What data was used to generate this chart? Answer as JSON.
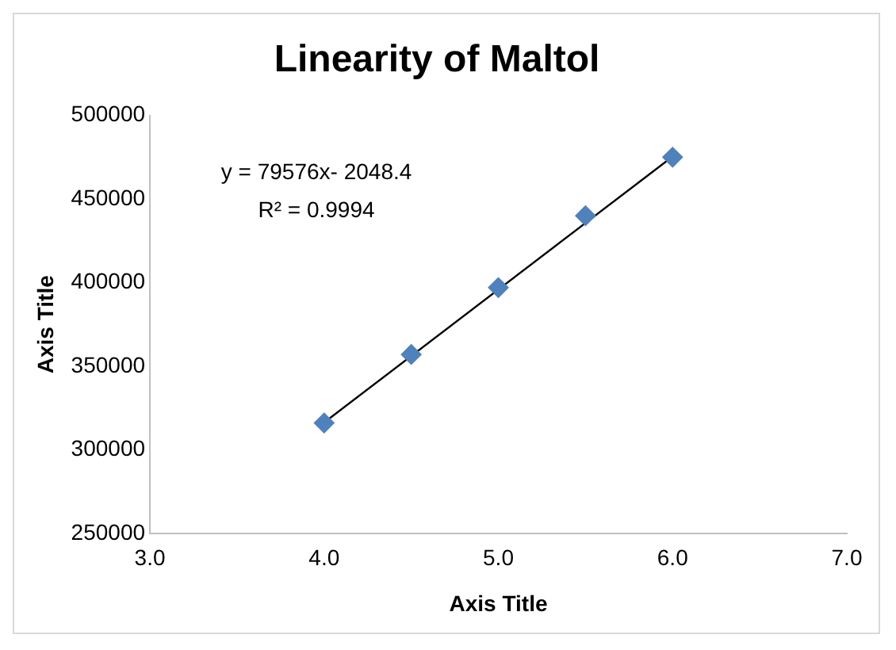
{
  "chart_data": {
    "type": "scatter",
    "title": "Linearity of Maltol",
    "xlabel": "Axis Title",
    "ylabel": "Axis Title",
    "x": [
      4.0,
      4.5,
      5.0,
      5.5,
      6.0
    ],
    "series": [
      {
        "color": "#4f81bd",
        "marker": "diamond",
        "values": [
          316000,
          357000,
          397000,
          440000,
          475000
        ]
      },
      {
        "type": "line",
        "color": "#000000",
        "marker": "none",
        "x": [
          4.0,
          6.0
        ],
        "values": [
          316300,
          475400
        ]
      }
    ],
    "xlim": [
      3,
      7
    ],
    "xticks": [
      {
        "value": 3,
        "label": "3.0"
      },
      {
        "value": 4,
        "label": "4.0"
      },
      {
        "value": 5,
        "label": "5.0"
      },
      {
        "value": 6,
        "label": "6.0"
      },
      {
        "value": 7,
        "label": "7.0"
      }
    ],
    "ylim": [
      250000,
      500000
    ],
    "yticks": [
      250000,
      300000,
      350000,
      400000,
      450000,
      500000
    ],
    "grid": false,
    "legend": false,
    "annotations": [
      "y = 79576x- 2048.4",
      "R² = 0.9994"
    ]
  }
}
